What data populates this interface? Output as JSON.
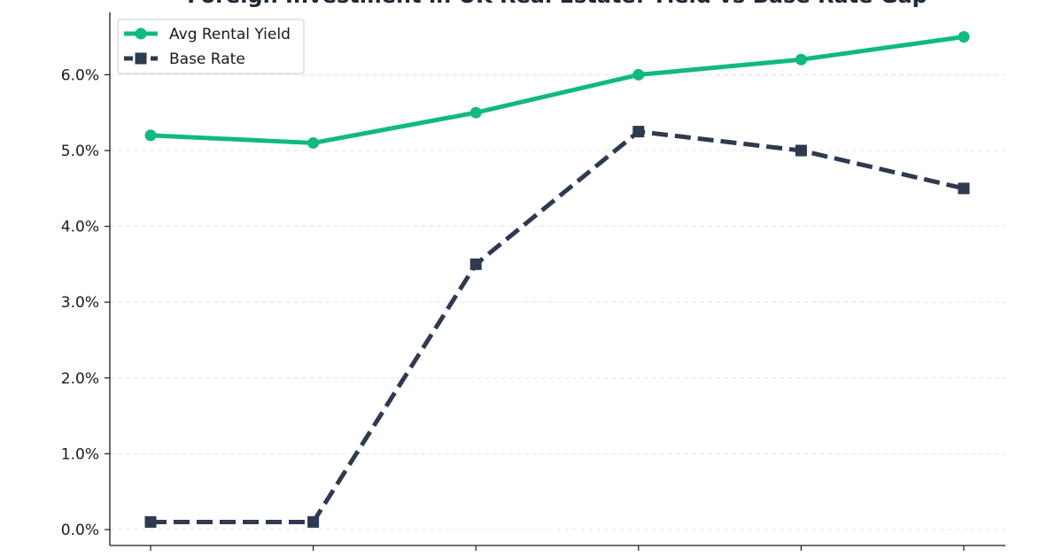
{
  "chart_data": {
    "type": "line",
    "title": "Foreign Investment in UK Real Estate: Yield vs Base Rate Gap",
    "xlabel": "",
    "ylabel": "",
    "x_count": 6,
    "ylim": [
      0,
      7
    ],
    "yticks": [
      0,
      1,
      2,
      3,
      4,
      5,
      6
    ],
    "ytick_labels": [
      "0.0%",
      "1.0%",
      "2.0%",
      "3.0%",
      "4.0%",
      "5.0%",
      "6.0%"
    ],
    "grid": true,
    "legend_position": "top-left",
    "series": [
      {
        "name": "Avg Rental Yield",
        "values": [
          5.2,
          5.1,
          5.5,
          6.0,
          6.2,
          6.5
        ],
        "color": "#10b981",
        "marker": "circle",
        "linestyle": "solid"
      },
      {
        "name": "Base Rate",
        "values": [
          0.1,
          0.1,
          3.5,
          5.25,
          5.0,
          4.5
        ],
        "color": "#2d3a4f",
        "marker": "square",
        "linestyle": "dashed"
      }
    ]
  }
}
